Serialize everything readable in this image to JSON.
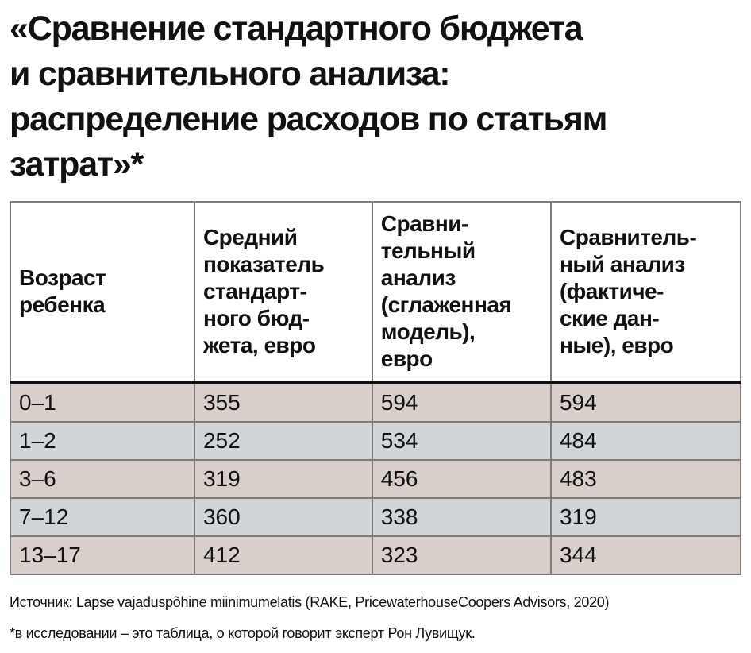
{
  "title": "«Сравнение стандартного бюджета\nи сравнительного анализа:\nраспределение расходов по статьям\nзатрат»*",
  "table": {
    "headers": [
      "Возраст\nребенка",
      "Средний\nпоказатель\nстандарт-\nного бюд-\nжета, евро",
      "Сравни-\nтельный\nанализ\n(сглаженная\nмодель),\nевро",
      "Сравнитель-\nный анализ\n(фактиче-\nские дан-\nные), евро"
    ],
    "rows": [
      [
        "0–1",
        "355",
        "594",
        "594"
      ],
      [
        "1–2",
        "252",
        "534",
        "484"
      ],
      [
        "3–6",
        "319",
        "456",
        "483"
      ],
      [
        "7–12",
        "360",
        "338",
        "319"
      ],
      [
        "13–17",
        "412",
        "323",
        "344"
      ]
    ]
  },
  "source": "Источник: Lapse vajaduspõhine miinimumelatis (RAKE, PricewaterhouseCoopers Advisors, 2020)",
  "footnote": "*в исследовании – это таблица, о которой говорит эксперт Рон Лувищук.",
  "colors": {
    "row_odd": "#d9cfca",
    "row_even": "#d1d5d8",
    "border": "#807b77"
  }
}
